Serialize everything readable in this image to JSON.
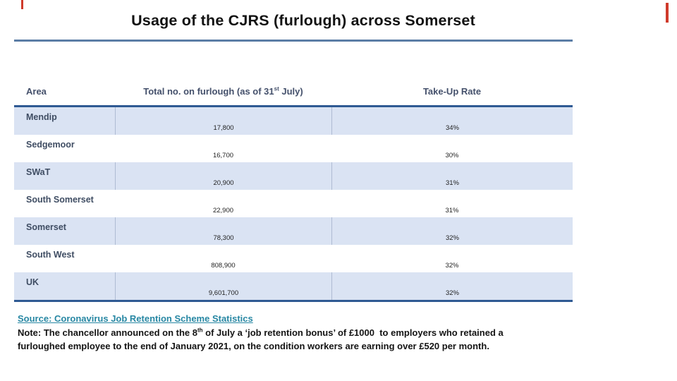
{
  "slide": {
    "title": "Usage of the CJRS (furlough) across Somerset",
    "accent_color": "#5B7DA5",
    "edge_marker_color": "#CF3A2B"
  },
  "table": {
    "headers": {
      "area": "Area",
      "total_pre": "Total no. on furlough (as of 31",
      "total_sup": "st",
      "total_post": " July)",
      "rate": "Take-Up Rate"
    },
    "rows": [
      {
        "area": "Mendip",
        "total": "17,800",
        "rate": "34%"
      },
      {
        "area": "Sedgemoor",
        "total": "16,700",
        "rate": "30%"
      },
      {
        "area": "SWaT",
        "total": "20,900",
        "rate": "31%"
      },
      {
        "area": "South Somerset",
        "total": "22,900",
        "rate": "31%"
      },
      {
        "area": "Somerset",
        "total": "78,300",
        "rate": "32%"
      },
      {
        "area": "South West",
        "total": "808,900",
        "rate": "32%"
      },
      {
        "area": "UK",
        "total": "9,601,700",
        "rate": "32%"
      }
    ],
    "band_color": "#DAE3F3",
    "border_color": "#2F5A93"
  },
  "footer": {
    "source_label": "Source: Coronavirus Job Retention Scheme Statistics",
    "note_line1_pre": "Note: The chancellor announced on the 8",
    "note_line1_sup": "th",
    "note_line1_post": " of July a ‘job retention bonus’ of £1000  to employers who retained a",
    "note_line2": "furloughed employee to the end of January 2021, on the condition workers are earning over £520 per month.",
    "link_color": "#2787A3"
  }
}
